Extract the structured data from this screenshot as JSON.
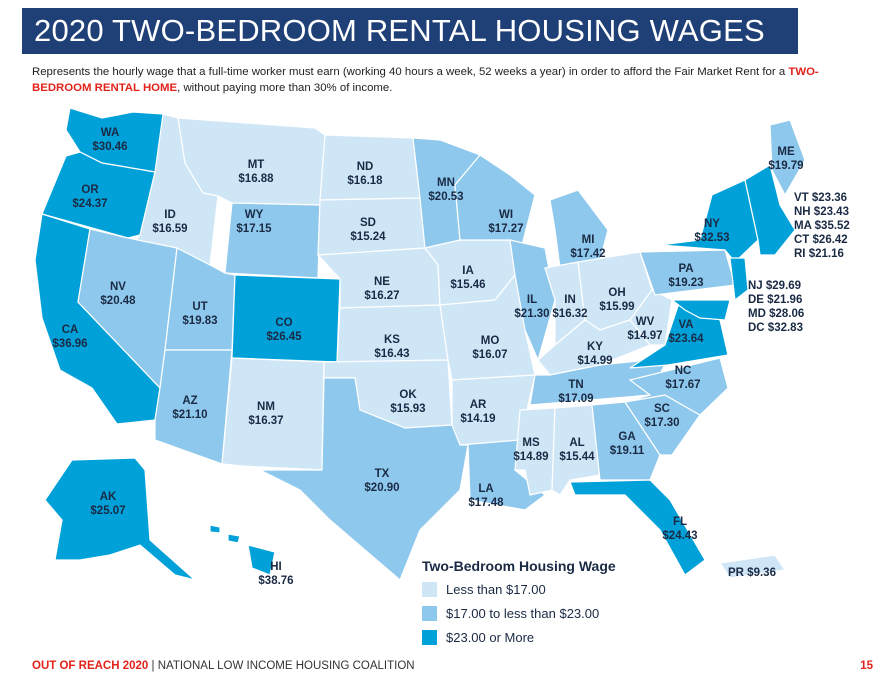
{
  "title": "2020 TWO-BEDROOM RENTAL HOUSING WAGES",
  "subtitle_pre": "Represents the hourly wage that a full-time worker must earn (working 40 hours a week, 52 weeks a year) in order to afford the Fair Market Rent for a ",
  "subtitle_highlight": "TWO-BEDROOM RENTAL HOME",
  "subtitle_post": ", without paying more than 30% of income.",
  "colors": {
    "title_bg": "#1f3f77",
    "light": "#cfe6f7",
    "mid": "#8ec8ec",
    "dark": "#00a0d8",
    "accent_red": "#e2231a"
  },
  "states": [
    {
      "abbr": "WA",
      "value": "$30.46",
      "tier": "dark"
    },
    {
      "abbr": "OR",
      "value": "$24.37",
      "tier": "dark"
    },
    {
      "abbr": "CA",
      "value": "$36.96",
      "tier": "dark"
    },
    {
      "abbr": "ID",
      "value": "$16.59",
      "tier": "light"
    },
    {
      "abbr": "NV",
      "value": "$20.48",
      "tier": "mid"
    },
    {
      "abbr": "MT",
      "value": "$16.88",
      "tier": "light"
    },
    {
      "abbr": "WY",
      "value": "$17.15",
      "tier": "mid"
    },
    {
      "abbr": "UT",
      "value": "$19.83",
      "tier": "mid"
    },
    {
      "abbr": "AZ",
      "value": "$21.10",
      "tier": "mid"
    },
    {
      "abbr": "CO",
      "value": "$26.45",
      "tier": "dark"
    },
    {
      "abbr": "NM",
      "value": "$16.37",
      "tier": "light"
    },
    {
      "abbr": "ND",
      "value": "$16.18",
      "tier": "light"
    },
    {
      "abbr": "SD",
      "value": "$15.24",
      "tier": "light"
    },
    {
      "abbr": "NE",
      "value": "$16.27",
      "tier": "light"
    },
    {
      "abbr": "KS",
      "value": "$16.43",
      "tier": "light"
    },
    {
      "abbr": "OK",
      "value": "$15.93",
      "tier": "light"
    },
    {
      "abbr": "TX",
      "value": "$20.90",
      "tier": "mid"
    },
    {
      "abbr": "MN",
      "value": "$20.53",
      "tier": "mid"
    },
    {
      "abbr": "IA",
      "value": "$15.46",
      "tier": "light"
    },
    {
      "abbr": "MO",
      "value": "$16.07",
      "tier": "light"
    },
    {
      "abbr": "AR",
      "value": "$14.19",
      "tier": "light"
    },
    {
      "abbr": "LA",
      "value": "$17.48",
      "tier": "mid"
    },
    {
      "abbr": "WI",
      "value": "$17.27",
      "tier": "mid"
    },
    {
      "abbr": "IL",
      "value": "$21.30",
      "tier": "mid"
    },
    {
      "abbr": "MI",
      "value": "$17.42",
      "tier": "mid"
    },
    {
      "abbr": "IN",
      "value": "$16.32",
      "tier": "light"
    },
    {
      "abbr": "OH",
      "value": "$15.99",
      "tier": "light"
    },
    {
      "abbr": "KY",
      "value": "$14.99",
      "tier": "light"
    },
    {
      "abbr": "TN",
      "value": "$17.09",
      "tier": "mid"
    },
    {
      "abbr": "MS",
      "value": "$14.89",
      "tier": "light"
    },
    {
      "abbr": "AL",
      "value": "$15.44",
      "tier": "light"
    },
    {
      "abbr": "GA",
      "value": "$19.11",
      "tier": "mid"
    },
    {
      "abbr": "FL",
      "value": "$24.43",
      "tier": "dark"
    },
    {
      "abbr": "SC",
      "value": "$17.30",
      "tier": "mid"
    },
    {
      "abbr": "NC",
      "value": "$17.67",
      "tier": "mid"
    },
    {
      "abbr": "VA",
      "value": "$23.64",
      "tier": "dark"
    },
    {
      "abbr": "WV",
      "value": "$14.97",
      "tier": "light"
    },
    {
      "abbr": "PA",
      "value": "$19.23",
      "tier": "mid"
    },
    {
      "abbr": "NY",
      "value": "$32.53",
      "tier": "dark"
    },
    {
      "abbr": "ME",
      "value": "$19.79",
      "tier": "mid"
    },
    {
      "abbr": "AK",
      "value": "$25.07",
      "tier": "dark"
    },
    {
      "abbr": "HI",
      "value": "$38.76",
      "tier": "dark"
    }
  ],
  "northeast_list": [
    {
      "abbr": "VT",
      "value": "$23.36"
    },
    {
      "abbr": "NH",
      "value": "$23.43"
    },
    {
      "abbr": "MA",
      "value": "$35.52"
    },
    {
      "abbr": "CT",
      "value": "$26.42"
    },
    {
      "abbr": "RI",
      "value": "$21.16"
    }
  ],
  "midatlantic_list": [
    {
      "abbr": "NJ",
      "value": "$29.69"
    },
    {
      "abbr": "DE",
      "value": "$21.96"
    },
    {
      "abbr": "MD",
      "value": "$28.06"
    },
    {
      "abbr": "DC",
      "value": "$32.83"
    }
  ],
  "pr": {
    "abbr": "PR",
    "value": "$9.36"
  },
  "legend": {
    "title": "Two-Bedroom Housing Wage",
    "items": [
      {
        "label": "Less than $17.00",
        "tier": "light"
      },
      {
        "label": "$17.00 to less than $23.00",
        "tier": "mid"
      },
      {
        "label": "$23.00 or More",
        "tier": "dark"
      }
    ]
  },
  "footer": {
    "source_bold": "OUT OF REACH 2020",
    "separator": "|",
    "source_rest": "NATIONAL LOW INCOME HOUSING COALITION",
    "page": "15"
  }
}
